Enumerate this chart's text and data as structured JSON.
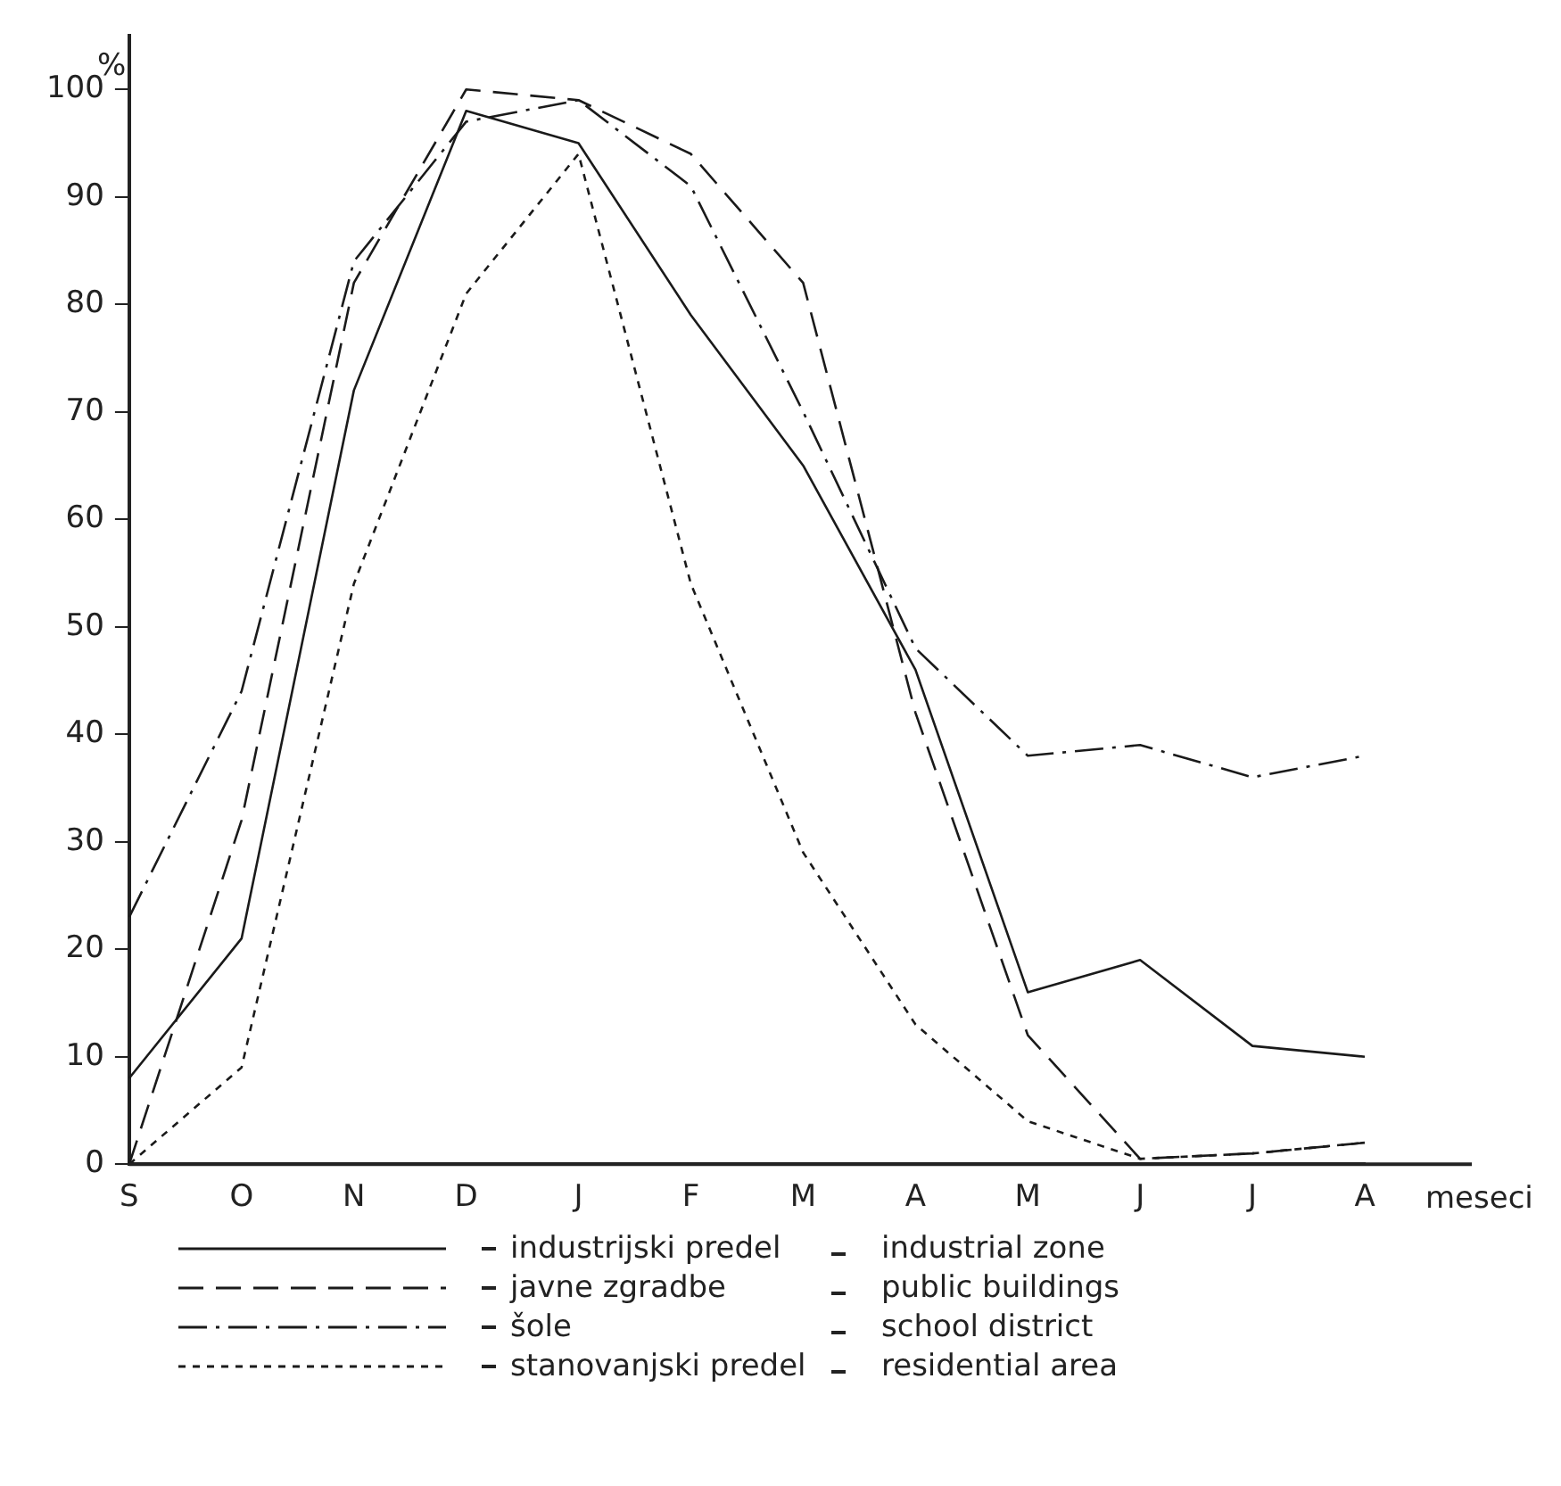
{
  "chart_data": {
    "type": "line",
    "categories": [
      "S",
      "O",
      "N",
      "D",
      "J",
      "F",
      "M",
      "A",
      "M",
      "J",
      "J",
      "A"
    ],
    "xlabel": "meseci",
    "ylabel": "%",
    "ylim": [
      0,
      105
    ],
    "yticks": [
      0,
      10,
      20,
      30,
      40,
      50,
      60,
      70,
      80,
      90,
      100
    ],
    "grid": false,
    "legend": "bottom",
    "marker": "none",
    "series": [
      {
        "name": "industrijski predel",
        "color": "#1a1a1a",
        "line_style": "solid",
        "values": [
          8,
          21,
          72,
          98,
          95,
          79,
          65,
          46,
          16,
          19,
          11,
          10
        ]
      },
      {
        "name": "javne zgradbe",
        "color": "#1a1a1a",
        "line_style": "dashed",
        "values": [
          0,
          32,
          82,
          100,
          99,
          94,
          82,
          42,
          12,
          0.5,
          1,
          2
        ]
      },
      {
        "name": "šole",
        "color": "#1a1a1a",
        "line_style": "dashdot",
        "values": [
          23,
          44,
          84,
          97,
          99,
          91,
          70,
          48,
          38,
          39,
          36,
          38
        ]
      },
      {
        "name": "stanovanjski predel",
        "color": "#1a1a1a",
        "line_style": "dotted",
        "values": [
          0,
          9,
          54,
          81,
          94,
          54,
          29,
          13,
          4,
          0.5,
          1,
          2
        ]
      }
    ],
    "annotations": [
      "industrial zone",
      "public buildings",
      "school district",
      "residential area"
    ]
  }
}
